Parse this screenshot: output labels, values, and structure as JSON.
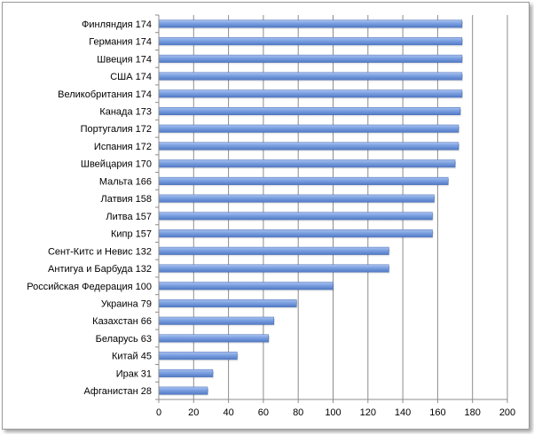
{
  "chart_data": {
    "type": "bar",
    "orientation": "horizontal",
    "categories": [
      "Финляндия 174",
      "Германия 174",
      "Швеция 174",
      "США 174",
      "Великобритания 174",
      "Канада 173",
      "Португалия 172",
      "Испания 172",
      "Швейцария 170",
      "Мальта 166",
      "Латвия 158",
      "Литва 157",
      "Кипр 157",
      "Сент-Китс и Невис 132",
      "Антигуа и Барбуда 132",
      "Российская Федерация 100",
      "Украина 79",
      "Казахстан 66",
      "Беларусь 63",
      "Китай 45",
      "Ирак 31",
      "Афганистан 28"
    ],
    "values": [
      174,
      174,
      174,
      174,
      174,
      173,
      172,
      172,
      170,
      166,
      158,
      157,
      157,
      132,
      132,
      100,
      79,
      66,
      63,
      45,
      31,
      28
    ],
    "xlim": [
      0,
      200
    ],
    "xticks": [
      0,
      20,
      40,
      60,
      80,
      100,
      120,
      140,
      160,
      180,
      200
    ],
    "xtick_labels": [
      "0",
      "20",
      "40",
      "60",
      "80",
      "100",
      "120",
      "140",
      "160",
      "180",
      "200"
    ],
    "grid": "vertical",
    "legend": "none",
    "bar_color": "#6f95d8",
    "title": "",
    "xlabel": "",
    "ylabel": ""
  }
}
